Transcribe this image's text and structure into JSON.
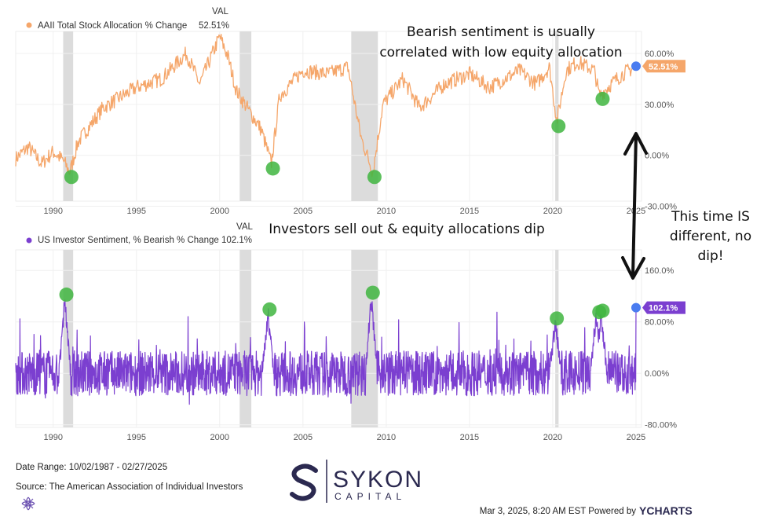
{
  "annotations": {
    "top_line1": "Bearish sentiment is usually",
    "top_line2": "correlated with low equity allocation",
    "middle": "Investors sell out & equity allocations dip",
    "right_line1": "This time IS",
    "right_line2": "different, no",
    "right_line3": "dip!"
  },
  "footer": {
    "date_range": "Date Range: 10/02/1987 - 02/27/2025",
    "source": "Source: The American Association of Individual Investors",
    "timestamp": "Mar 3, 2025, 8:20 AM EST Powered by",
    "ycharts": "YCHARTS",
    "logo_main": "SYKON",
    "logo_sub": "CAPITAL"
  },
  "colors": {
    "allocation": "#f5a66a",
    "bearish": "#7b3fd0",
    "circle": "#3fb53f",
    "endpoint": "#4a7cf0",
    "recession": "#dcdcdc"
  },
  "chart_data": [
    {
      "type": "line",
      "name": "top-panel",
      "legend_header": "VAL",
      "series_name": "AAII Total Stock Allocation % Change",
      "last_value_label": "52.51%",
      "last_value": 52.51,
      "x_range": [
        1987.75,
        2025.0
      ],
      "x_ticks": [
        "1990",
        "1995",
        "2000",
        "2005",
        "2010",
        "2015",
        "2020",
        "2025"
      ],
      "x_tick_values": [
        1990,
        1995,
        2000,
        2005,
        2010,
        2015,
        2020,
        2025
      ],
      "ylim": [
        -27,
        73
      ],
      "y_ticks": [
        "60.00%",
        "30.00%",
        "0.00%",
        "-30.00%"
      ],
      "y_tick_values": [
        60,
        30,
        0,
        -30
      ],
      "keypoints": [
        [
          1987.75,
          -2
        ],
        [
          1988.5,
          5
        ],
        [
          1989.3,
          -5
        ],
        [
          1990.0,
          2
        ],
        [
          1990.6,
          -3
        ],
        [
          1991.0,
          -10
        ],
        [
          1991.5,
          8
        ],
        [
          1993.0,
          28
        ],
        [
          1995.0,
          40
        ],
        [
          1996.5,
          45
        ],
        [
          1998.0,
          60
        ],
        [
          1998.8,
          42
        ],
        [
          2000.0,
          70
        ],
        [
          2000.5,
          58
        ],
        [
          2001.0,
          38
        ],
        [
          2002.5,
          15
        ],
        [
          2003.1,
          -5
        ],
        [
          2003.6,
          35
        ],
        [
          2005.0,
          50
        ],
        [
          2006.5,
          48
        ],
        [
          2007.7,
          52
        ],
        [
          2008.5,
          10
        ],
        [
          2009.2,
          -10
        ],
        [
          2009.8,
          30
        ],
        [
          2011.0,
          45
        ],
        [
          2012.0,
          28
        ],
        [
          2013.5,
          42
        ],
        [
          2015.0,
          48
        ],
        [
          2016.2,
          40
        ],
        [
          2018.0,
          50
        ],
        [
          2019.0,
          42
        ],
        [
          2019.8,
          52
        ],
        [
          2020.25,
          20
        ],
        [
          2020.8,
          50
        ],
        [
          2021.5,
          55
        ],
        [
          2022.5,
          50
        ],
        [
          2022.8,
          35
        ],
        [
          2023.5,
          42
        ],
        [
          2024.2,
          48
        ],
        [
          2025.0,
          52.51
        ]
      ],
      "circled_x": [
        1991.0,
        2003.1,
        2009.2,
        2020.25,
        2022.9
      ],
      "recessions": [
        [
          1990.6,
          1991.2
        ],
        [
          2001.2,
          2001.9
        ],
        [
          2007.9,
          2009.5
        ],
        [
          2020.15,
          2020.35
        ]
      ]
    },
    {
      "type": "line",
      "name": "bottom-panel",
      "legend_header": "VAL",
      "series_name": "US Investor Sentiment, % Bearish % Change",
      "last_value_label": "102.1%",
      "last_value": 102.1,
      "x_range": [
        1987.75,
        2025.0
      ],
      "x_ticks": [
        "1990",
        "1995",
        "2000",
        "2005",
        "2010",
        "2015",
        "2020",
        "2025"
      ],
      "x_tick_values": [
        1990,
        1995,
        2000,
        2005,
        2010,
        2015,
        2020,
        2025
      ],
      "ylim": [
        -84,
        192
      ],
      "y_ticks": [
        "160.0%",
        "80.00%",
        "0.00%",
        "-80.00%"
      ],
      "y_tick_values": [
        160,
        80,
        0,
        -80
      ],
      "spikes": [
        [
          1990.7,
          115
        ],
        [
          2002.9,
          92
        ],
        [
          2009.1,
          118
        ],
        [
          2020.15,
          78
        ],
        [
          2022.6,
          88
        ],
        [
          2022.9,
          90
        ]
      ],
      "circled_x": [
        1990.7,
        2002.9,
        2009.1,
        2020.15,
        2022.7,
        2022.9
      ],
      "recessions": [
        [
          1990.6,
          1991.2
        ],
        [
          2001.2,
          2001.9
        ],
        [
          2007.9,
          2009.5
        ],
        [
          2020.15,
          2020.35
        ]
      ]
    }
  ]
}
